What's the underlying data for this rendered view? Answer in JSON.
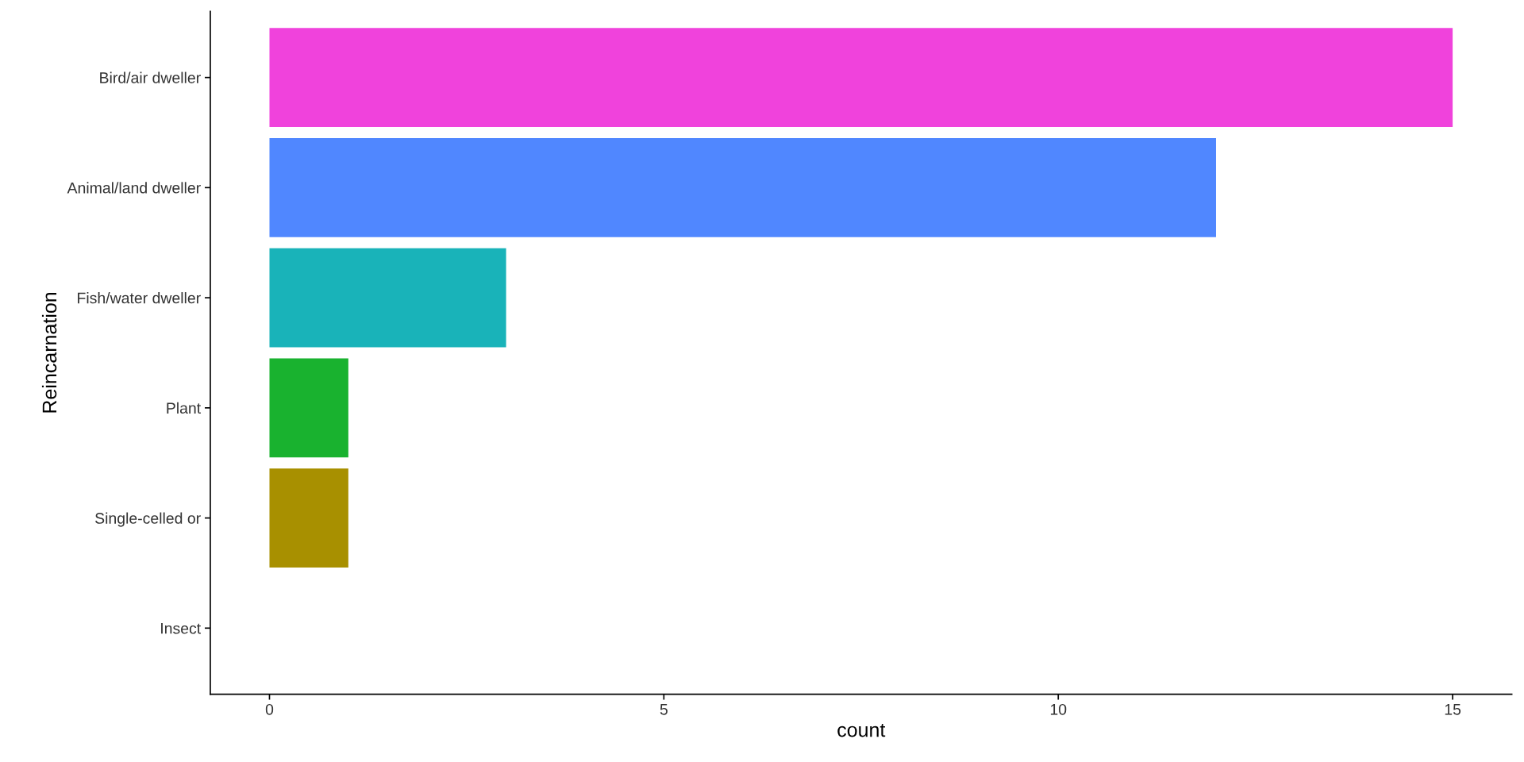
{
  "chart_data": {
    "type": "bar",
    "orientation": "horizontal",
    "xlabel": "count",
    "ylabel": "Reincarnation",
    "categories": [
      "Bird/air dweller",
      "Animal/land dweller",
      "Fish/water dweller",
      "Plant",
      "Single-celled or",
      "Insect"
    ],
    "values": [
      15,
      12,
      3,
      1,
      1,
      null
    ],
    "colors": [
      "#f042dc",
      "#5087ff",
      "#19b3b9",
      "#19b22f",
      "#a89000",
      "#f8766d"
    ],
    "xlim": [
      -0.75,
      15.75
    ],
    "xticks": [
      0,
      5,
      10,
      15
    ],
    "grid": false
  }
}
